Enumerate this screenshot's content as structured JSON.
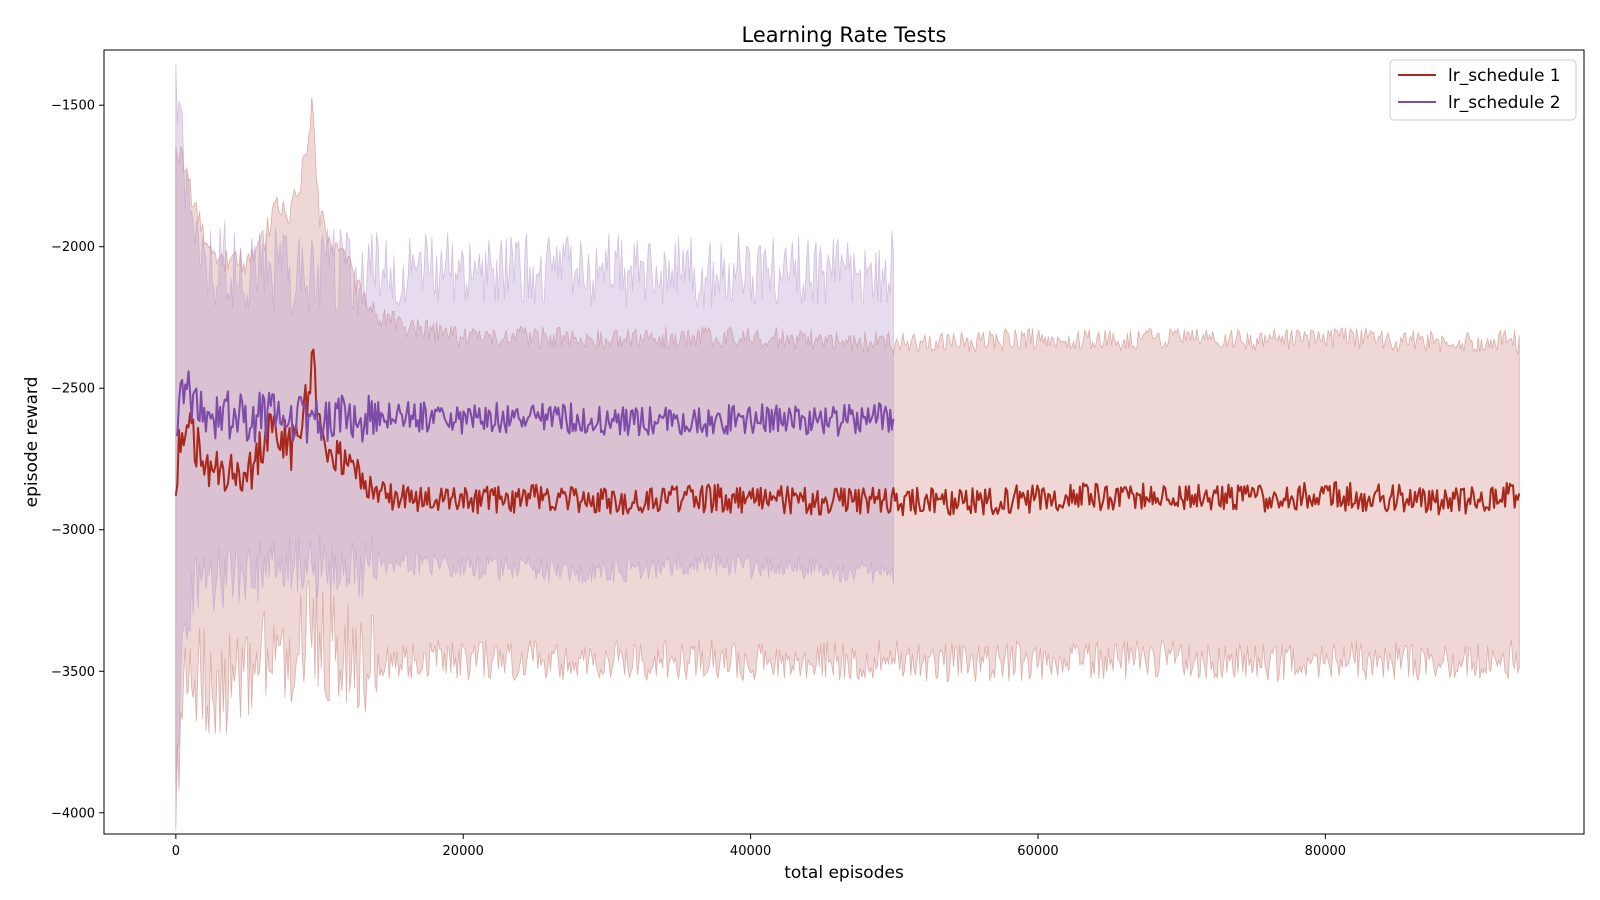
{
  "chart_data": {
    "type": "line",
    "title": "Learning Rate Tests",
    "xlabel": "total episodes",
    "ylabel": "episode reward",
    "xlim": [
      -5000,
      98000
    ],
    "ylim": [
      -4075,
      -1305
    ],
    "xticks": [
      0,
      20000,
      40000,
      60000,
      80000
    ],
    "xtick_labels": [
      "0",
      "20000",
      "40000",
      "60000",
      "80000"
    ],
    "yticks": [
      -1500,
      -2000,
      -2500,
      -3000,
      -3500,
      -4000
    ],
    "ytick_labels": [
      "−1500",
      "−2000",
      "−2500",
      "−3000",
      "−3500",
      "−4000"
    ],
    "grid": false,
    "legend_placement": "top-right",
    "series": [
      {
        "name": "lr_schedule 1",
        "color": "#a8281c",
        "band_color": "#c77b72",
        "band_opacity": 0.3,
        "x_start": 0,
        "x_end": 93500,
        "keypoints": [
          [
            0,
            -2810,
            -3950,
            -1670
          ],
          [
            500,
            -2620,
            -3600,
            -1680
          ],
          [
            1000,
            -2660,
            -3540,
            -1800
          ],
          [
            2000,
            -2760,
            -3530,
            -1990
          ],
          [
            3000,
            -2800,
            -3560,
            -2050
          ],
          [
            4000,
            -2760,
            -3520,
            -2030
          ],
          [
            5000,
            -2810,
            -3570,
            -2060
          ],
          [
            6000,
            -2700,
            -3450,
            -1990
          ],
          [
            7000,
            -2640,
            -3470,
            -1850
          ],
          [
            8000,
            -2720,
            -3450,
            -1880
          ],
          [
            9000,
            -2560,
            -3380,
            -1700
          ],
          [
            9500,
            -2400,
            -3300,
            -1500
          ],
          [
            10000,
            -2650,
            -3400,
            -1900
          ],
          [
            11000,
            -2740,
            -3420,
            -1990
          ],
          [
            12000,
            -2730,
            -3430,
            -2020
          ],
          [
            13000,
            -2880,
            -3480,
            -2200
          ],
          [
            14000,
            -2870,
            -3470,
            -2250
          ],
          [
            16000,
            -2890,
            -3460,
            -2280
          ],
          [
            20000,
            -2900,
            -3460,
            -2320
          ],
          [
            25000,
            -2890,
            -3460,
            -2320
          ],
          [
            30000,
            -2900,
            -3460,
            -2330
          ],
          [
            35000,
            -2890,
            -3460,
            -2320
          ],
          [
            40000,
            -2890,
            -3460,
            -2320
          ],
          [
            45000,
            -2900,
            -3460,
            -2330
          ],
          [
            50000,
            -2900,
            -3460,
            -2340
          ],
          [
            55000,
            -2900,
            -3470,
            -2340
          ],
          [
            60000,
            -2890,
            -3460,
            -2320
          ],
          [
            65000,
            -2880,
            -3460,
            -2330
          ],
          [
            70000,
            -2880,
            -3460,
            -2320
          ],
          [
            75000,
            -2890,
            -3470,
            -2330
          ],
          [
            80000,
            -2880,
            -3460,
            -2320
          ],
          [
            85000,
            -2890,
            -3460,
            -2330
          ],
          [
            90000,
            -2900,
            -3460,
            -2340
          ],
          [
            93000,
            -2880,
            -3460,
            -2320
          ],
          [
            93500,
            -2900,
            -3470,
            -2350
          ]
        ],
        "noise_amp": [
          50,
          160,
          30
        ]
      },
      {
        "name": "lr_schedule 2",
        "color": "#7e4ba8",
        "band_color": "#b89bcf",
        "band_opacity": 0.35,
        "x_start": 0,
        "x_end": 50000,
        "keypoints": [
          [
            0,
            -2690,
            -3900,
            -1500
          ],
          [
            600,
            -2450,
            -3300,
            -1700
          ],
          [
            1500,
            -2590,
            -3180,
            -2050
          ],
          [
            5000,
            -2600,
            -3150,
            -2080
          ],
          [
            10000,
            -2610,
            -3130,
            -2090
          ],
          [
            15000,
            -2600,
            -3120,
            -2090
          ],
          [
            20000,
            -2610,
            -3130,
            -2070
          ],
          [
            25000,
            -2600,
            -3140,
            -2080
          ],
          [
            30000,
            -2610,
            -3150,
            -2080
          ],
          [
            35000,
            -2620,
            -3120,
            -2090
          ],
          [
            40000,
            -2610,
            -3130,
            -2080
          ],
          [
            45000,
            -2620,
            -3140,
            -2080
          ],
          [
            49800,
            -2600,
            -3150,
            -2070
          ]
        ],
        "noise_amp": [
          55,
          100,
          100
        ]
      }
    ]
  }
}
